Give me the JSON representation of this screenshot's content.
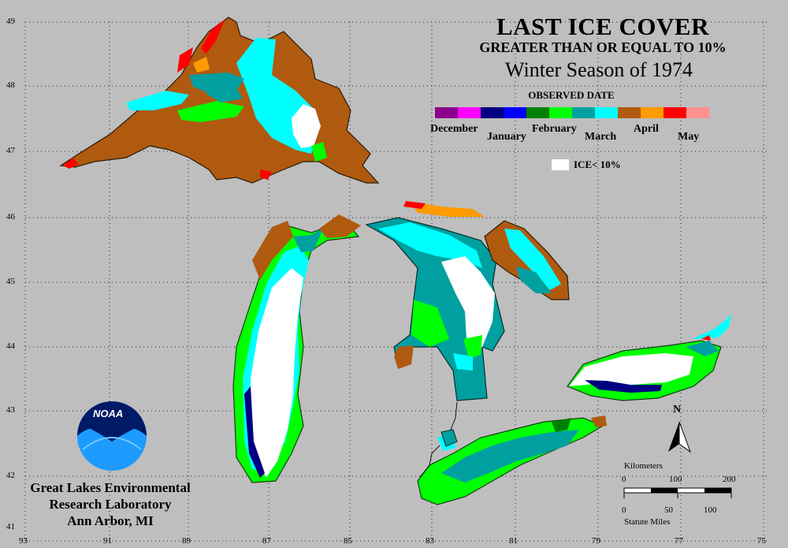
{
  "title": "LAST ICE COVER",
  "subtitle": "GREATER THAN OR EQUAL TO 10%",
  "season": "Winter Season of 1974",
  "legend": {
    "heading": "OBSERVED DATE",
    "months": [
      "December",
      "January",
      "February",
      "March",
      "April",
      "May"
    ],
    "swatch_colors": [
      "#8b008b",
      "#ff00ff",
      "#000080",
      "#0000ff",
      "#008000",
      "#00ff00",
      "#00a0a0",
      "#00ffff",
      "#b05a10",
      "#ff9a00",
      "#ff0000",
      "#ff9090"
    ],
    "ice_less_label": "ICE< 10%",
    "ice_less_color": "#ffffff"
  },
  "lat_ticks": [
    "49",
    "48",
    "47",
    "46",
    "45",
    "44",
    "43",
    "42",
    "41"
  ],
  "lon_ticks": [
    "93",
    "91",
    "89",
    "87",
    "85",
    "83",
    "81",
    "79",
    "77",
    "75"
  ],
  "north_label": "N",
  "scale": {
    "km_title": "Kilometers",
    "km_ticks": [
      "0",
      "100",
      "200"
    ],
    "mi_ticks": [
      "0",
      "50",
      "100"
    ],
    "mi_title": "Statute Miles"
  },
  "logo_text": "NOAA",
  "lab": {
    "line1": "Great Lakes Environmental",
    "line2": "Research Laboratory",
    "line3": "Ann Arbor, MI"
  },
  "icons": {
    "logo": "noaa-logo-icon",
    "north_arrow": "north-arrow-icon"
  }
}
